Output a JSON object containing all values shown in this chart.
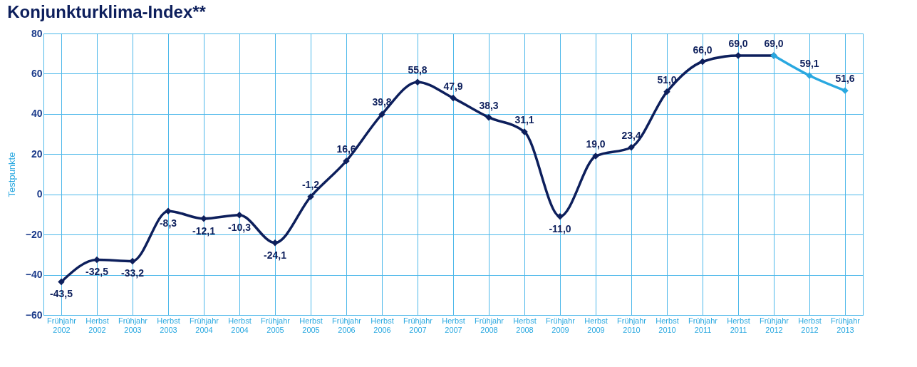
{
  "chart_data": {
    "type": "line",
    "title": "Konjunkturklima-Index**",
    "ylabel": "Testpunkte",
    "categories": [
      "Frühjahr 2002",
      "Herbst 2002",
      "Frühjahr 2003",
      "Herbst 2003",
      "Frühjahr 2004",
      "Herbst 2004",
      "Frühjahr 2005",
      "Herbst 2005",
      "Frühjahr 2006",
      "Herbst 2006",
      "Frühjahr 2007",
      "Herbst 2007",
      "Frühjahr 2008",
      "Herbst 2008",
      "Frühjahr 2009",
      "Herbst 2009",
      "Frühjahr 2010",
      "Herbst 2010",
      "Frühjahr 2011",
      "Herbst 2011",
      "Frühjahr 2012",
      "Herbst 2012",
      "Frühjahr 2013"
    ],
    "series": [
      {
        "color": "#0d1f5c",
        "values": [
          -43.5,
          -32.5,
          -33.2,
          -8.3,
          -12.1,
          -10.3,
          -24.1,
          -1.2,
          16.6,
          39.8,
          55.8,
          47.9,
          38.3,
          31.1,
          -11.0,
          19.0,
          23.4,
          51.0,
          66.0,
          69.0,
          69.0,
          null,
          null
        ],
        "value_labels": [
          "-43,5",
          "-32,5",
          "-33,2",
          "-8,3",
          "-12,1",
          "-10,3",
          "-24,1",
          "-1,2",
          "16,6",
          "39,8",
          "55,8",
          "47,9",
          "38,3",
          "31,1",
          "-11,0",
          "19,0",
          "23,4",
          "51,0",
          "66,0",
          "69,0",
          "69,0",
          null,
          null
        ]
      },
      {
        "color": "#29a8e0",
        "values": [
          null,
          null,
          null,
          null,
          null,
          null,
          null,
          null,
          null,
          null,
          null,
          null,
          null,
          null,
          null,
          null,
          null,
          null,
          null,
          null,
          69.0,
          59.1,
          51.6
        ],
        "value_labels": [
          null,
          null,
          null,
          null,
          null,
          null,
          null,
          null,
          null,
          null,
          null,
          null,
          null,
          null,
          null,
          null,
          null,
          null,
          null,
          null,
          null,
          "59,1",
          "51,6"
        ]
      }
    ],
    "ylim": [
      -60,
      80
    ],
    "yticks": [
      -60,
      -40,
      -20,
      0,
      20,
      40,
      60,
      80
    ],
    "grid": true,
    "marker": "diamond",
    "line_style": "solid"
  }
}
